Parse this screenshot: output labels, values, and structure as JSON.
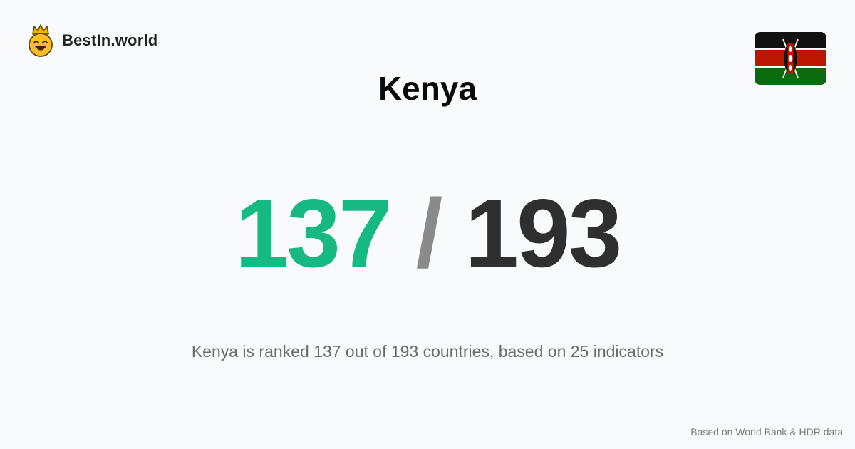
{
  "brand": {
    "name": "BestIn.world",
    "logo_icon": "crowned-smiley-icon"
  },
  "flag": {
    "icon": "kenya-flag-icon",
    "colors": [
      "#111111",
      "#ffffff",
      "#bb1600",
      "#0a6b0f"
    ]
  },
  "title": "Kenya",
  "rank": {
    "value": "137",
    "separator": "/",
    "total": "193",
    "value_color": "#16b981"
  },
  "summary": "Kenya is ranked 137 out of 193 countries, based on 25 indicators",
  "source": "Based on World Bank & HDR data"
}
